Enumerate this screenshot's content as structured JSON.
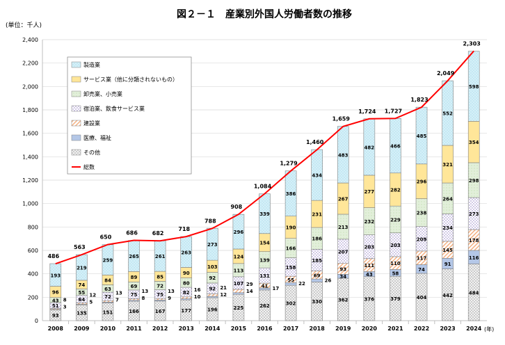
{
  "chart_data": {
    "type": "bar",
    "stacked": true,
    "title": "図２－１　産業別外国人労働者数の推移",
    "unit_label": "(単位：千人)",
    "xlabel": "(年)",
    "ylim": [
      0,
      2400
    ],
    "yticks": [
      0,
      200,
      400,
      600,
      800,
      1000,
      1200,
      1400,
      1600,
      1800,
      2000,
      2200,
      2400
    ],
    "grid": true,
    "legend_placement": "top-left",
    "categories": [
      "2008",
      "2009",
      "2010",
      "2011",
      "2012",
      "2013",
      "2014",
      "2015",
      "2016",
      "2017",
      "2018",
      "2019",
      "2020",
      "2021",
      "2022",
      "2023",
      "2024"
    ],
    "series": [
      {
        "name": "その他",
        "color": "#d9d9d9",
        "values": [
          93,
          135,
          151,
          166,
          167,
          177,
          196,
          225,
          262,
          302,
          330,
          362,
          376,
          379,
          404,
          442,
          484
        ]
      },
      {
        "name": "医療、福祉",
        "color": "#b4c7e7",
        "values": [
          3,
          5,
          7,
          8,
          9,
          10,
          12,
          14,
          17,
          22,
          26,
          34,
          43,
          58,
          74,
          91,
          116
        ]
      },
      {
        "name": "建設業",
        "color": "#f4b183",
        "values": [
          8,
          12,
          13,
          13,
          13,
          16,
          21,
          29,
          41,
          55,
          69,
          93,
          111,
          110,
          117,
          145,
          178
        ]
      },
      {
        "name": "宿泊業、飲食サービス業",
        "color": "#b4a7d6",
        "values": [
          51,
          64,
          72,
          75,
          75,
          82,
          92,
          107,
          131,
          158,
          185,
          207,
          203,
          203,
          209,
          234,
          273
        ]
      },
      {
        "name": "卸売業、小売業",
        "color": "#e2efda",
        "values": [
          43,
          55,
          63,
          69,
          72,
          80,
          92,
          113,
          139,
          166,
          186,
          213,
          232,
          229,
          238,
          264,
          298
        ]
      },
      {
        "name": "サービス業（他に分類されないもの）",
        "color": "#ffe699",
        "values": [
          96,
          74,
          84,
          89,
          85,
          90,
          103,
          124,
          154,
          190,
          231,
          267,
          277,
          282,
          296,
          321,
          354
        ]
      },
      {
        "name": "製造業",
        "color": "#d5f0f8",
        "values": [
          193,
          219,
          259,
          265,
          261,
          263,
          273,
          296,
          339,
          386,
          434,
          483,
          482,
          466,
          485,
          552,
          598
        ]
      }
    ],
    "total": {
      "name": "総数",
      "color": "#ff0000",
      "values": [
        486,
        563,
        650,
        686,
        682,
        718,
        788,
        908,
        1084,
        1279,
        1460,
        1659,
        1724,
        1727,
        1823,
        2049,
        2303
      ]
    },
    "legend_order": [
      "製造業",
      "サービス業（他に分類されないもの）",
      "卸売業、小売業",
      "宿泊業、飲食サービス業",
      "建設業",
      "医療、福祉",
      "その他",
      "総数"
    ]
  }
}
